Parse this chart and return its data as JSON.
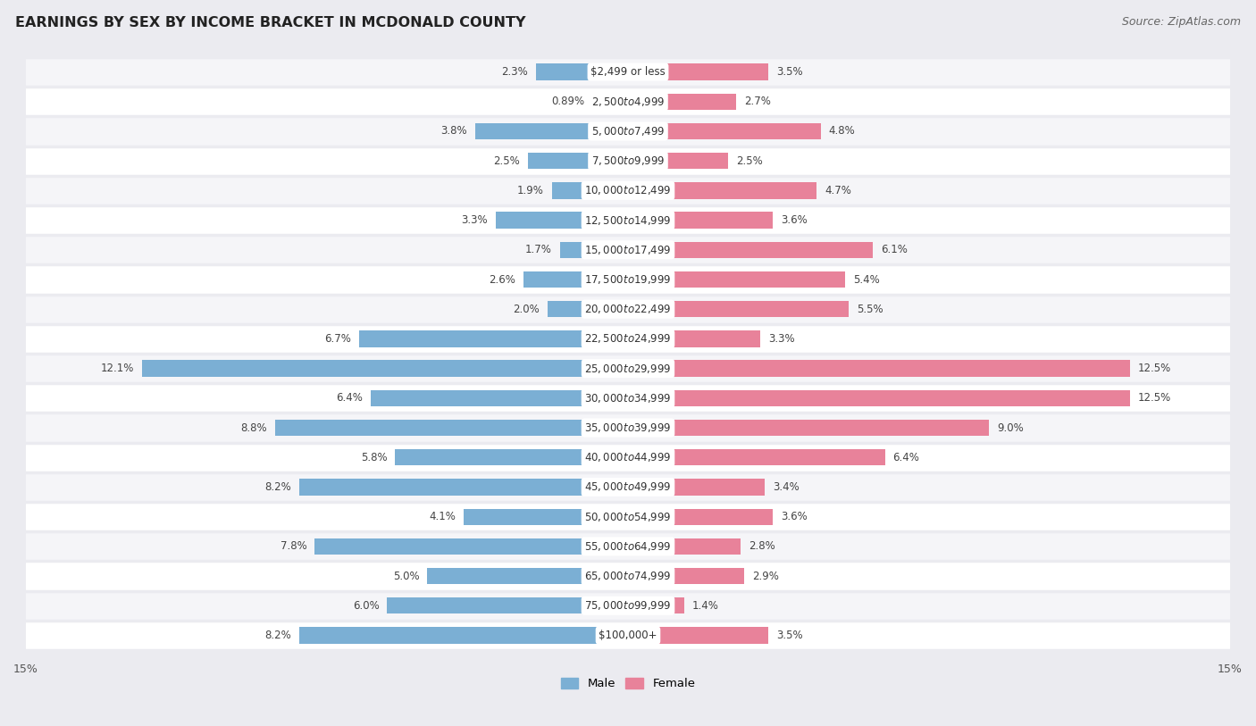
{
  "title": "EARNINGS BY SEX BY INCOME BRACKET IN MCDONALD COUNTY",
  "source": "Source: ZipAtlas.com",
  "categories": [
    "$2,499 or less",
    "$2,500 to $4,999",
    "$5,000 to $7,499",
    "$7,500 to $9,999",
    "$10,000 to $12,499",
    "$12,500 to $14,999",
    "$15,000 to $17,499",
    "$17,500 to $19,999",
    "$20,000 to $22,499",
    "$22,500 to $24,999",
    "$25,000 to $29,999",
    "$30,000 to $34,999",
    "$35,000 to $39,999",
    "$40,000 to $44,999",
    "$45,000 to $49,999",
    "$50,000 to $54,999",
    "$55,000 to $64,999",
    "$65,000 to $74,999",
    "$75,000 to $99,999",
    "$100,000+"
  ],
  "male_values": [
    2.3,
    0.89,
    3.8,
    2.5,
    1.9,
    3.3,
    1.7,
    2.6,
    2.0,
    6.7,
    12.1,
    6.4,
    8.8,
    5.8,
    8.2,
    4.1,
    7.8,
    5.0,
    6.0,
    8.2
  ],
  "female_values": [
    3.5,
    2.7,
    4.8,
    2.5,
    4.7,
    3.6,
    6.1,
    5.4,
    5.5,
    3.3,
    12.5,
    12.5,
    9.0,
    6.4,
    3.4,
    3.6,
    2.8,
    2.9,
    1.4,
    3.5
  ],
  "male_color": "#7bafd4",
  "female_color": "#e8829a",
  "xlim": 15.0,
  "background_color": "#ebebf0",
  "row_color_odd": "#f5f5f8",
  "row_color_even": "#ffffff",
  "bar_height": 0.55,
  "title_fontsize": 11.5,
  "source_fontsize": 9,
  "label_fontsize": 8.5,
  "legend_fontsize": 9.5,
  "category_fontsize": 8.5
}
